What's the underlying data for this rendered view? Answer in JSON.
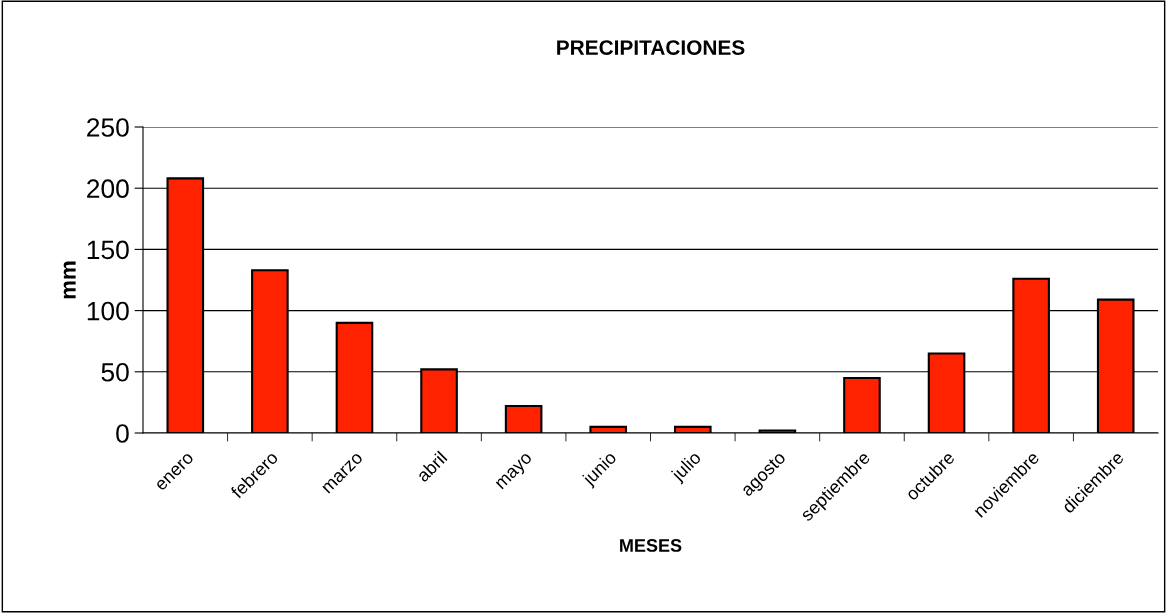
{
  "chart_data": {
    "type": "bar",
    "title": "PRECIPITACIONES",
    "xlabel": "MESES",
    "ylabel": "mm",
    "categories": [
      "enero",
      "febrero",
      "marzo",
      "abril",
      "mayo",
      "junio",
      "julio",
      "agosto",
      "septiembre",
      "octubre",
      "noviembre",
      "diciembre"
    ],
    "values": [
      208,
      133,
      90,
      52,
      22,
      5,
      5,
      2,
      45,
      65,
      126,
      109
    ],
    "color": "#ff2200",
    "ylim": [
      0,
      250
    ],
    "yticks": [
      0,
      50,
      100,
      150,
      200,
      250
    ],
    "grid": "y",
    "legend": false
  }
}
